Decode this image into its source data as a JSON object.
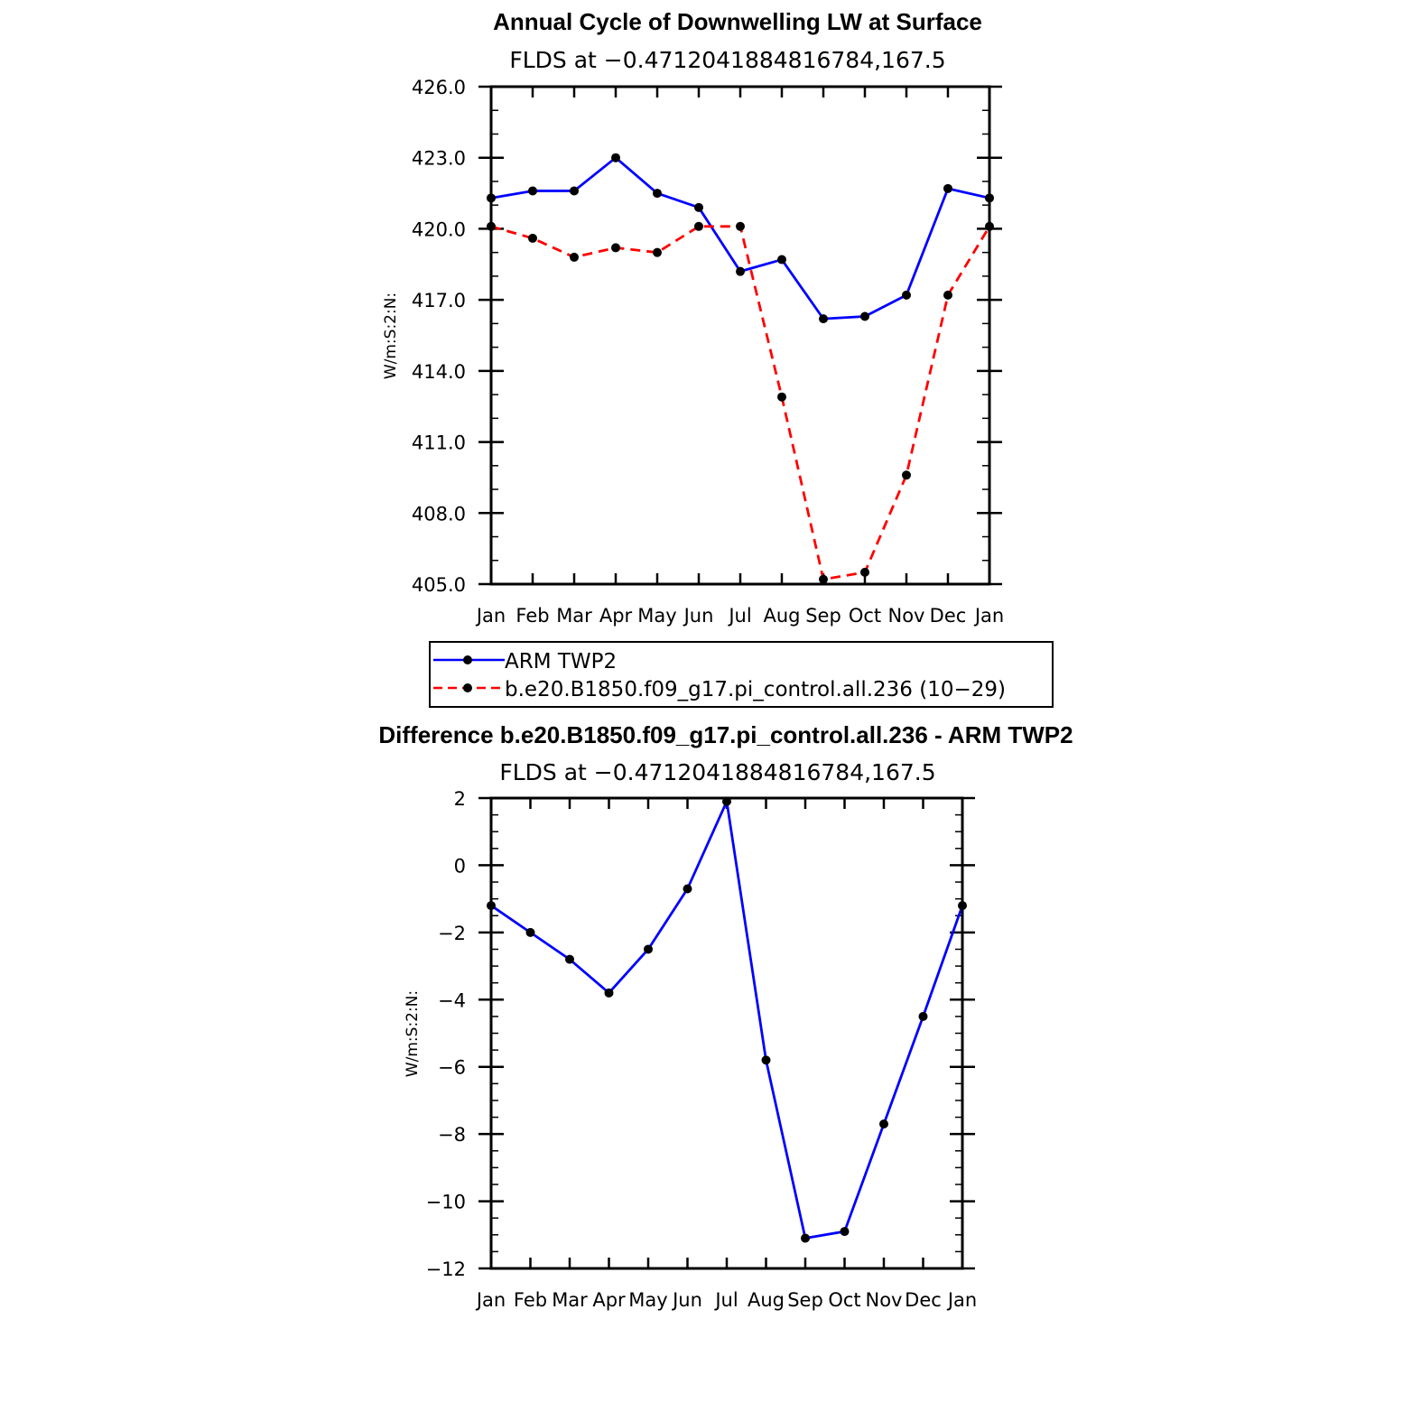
{
  "chart_data": [
    {
      "type": "line",
      "title": "Annual Cycle of Downwelling LW at Surface",
      "subtitle": "FLDS at −0.4712041884816784,167.5",
      "ylabel": "W/m:S:2:N:",
      "xlabel": "",
      "ylim": [
        405.0,
        426.0
      ],
      "yticks": [
        "426.0",
        "423.0",
        "420.0",
        "417.0",
        "414.0",
        "411.0",
        "408.0",
        "405.0"
      ],
      "categories": [
        "Jan",
        "Feb",
        "Mar",
        "Apr",
        "May",
        "Jun",
        "Jul",
        "Aug",
        "Sep",
        "Oct",
        "Nov",
        "Dec",
        "Jan"
      ],
      "series": [
        {
          "name": "ARM TWP2",
          "color": "#0000ff",
          "dash": "solid",
          "values": [
            421.3,
            421.6,
            421.6,
            423.0,
            421.5,
            420.9,
            418.2,
            418.7,
            416.2,
            416.3,
            417.2,
            421.7,
            421.3
          ]
        },
        {
          "name": "b.e20.B1850.f09_g17.pi_control.all.236 (10−29)",
          "color": "#ff0000",
          "dash": "dashed",
          "values": [
            420.1,
            419.6,
            418.8,
            419.2,
            419.0,
            420.1,
            420.1,
            412.9,
            405.2,
            405.5,
            409.6,
            417.2,
            420.1
          ]
        }
      ],
      "legend_position": "bottom"
    },
    {
      "type": "line",
      "title": "Difference b.e20.B1850.f09_g17.pi_control.all.236 - ARM TWP2",
      "subtitle": "FLDS at −0.4712041884816784,167.5",
      "ylabel": "W/m:S:2:N:",
      "xlabel": "",
      "ylim": [
        -12,
        2
      ],
      "yticks": [
        "2",
        "0",
        "−2",
        "−4",
        "−6",
        "−8",
        "−10",
        "−12"
      ],
      "categories": [
        "Jan",
        "Feb",
        "Mar",
        "Apr",
        "May",
        "Jun",
        "Jul",
        "Aug",
        "Sep",
        "Oct",
        "Nov",
        "Dec",
        "Jan"
      ],
      "series": [
        {
          "color": "#0000ff",
          "dash": "solid",
          "values": [
            -1.2,
            -2.0,
            -2.8,
            -3.8,
            -2.5,
            -0.7,
            1.9,
            -5.8,
            -11.1,
            -10.9,
            -7.7,
            -4.5,
            -1.2
          ]
        }
      ]
    }
  ]
}
